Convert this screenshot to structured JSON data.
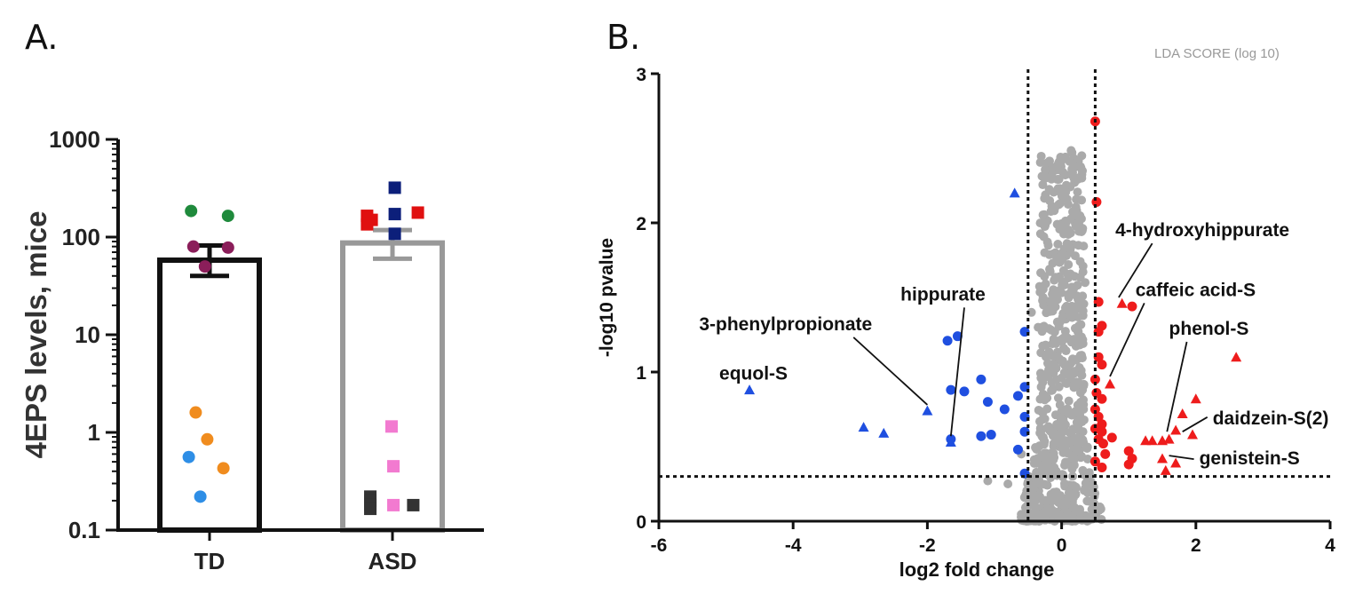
{
  "panels": {
    "a_label": "A.",
    "b_label": "B."
  },
  "chart_data": [
    {
      "type": "bar",
      "panel": "A.",
      "ylabel": "4EPS levels, mice",
      "yscale": "log",
      "ylim": [
        0.1,
        1000
      ],
      "yticks": [
        {
          "value": 0.1,
          "label": "0.1"
        },
        {
          "value": 1,
          "label": "1"
        },
        {
          "value": 10,
          "label": "10"
        },
        {
          "value": 100,
          "label": "100"
        },
        {
          "value": 1000,
          "label": "1000"
        }
      ],
      "categories": [
        "TD",
        "ASD"
      ],
      "bars": [
        {
          "category": "TD",
          "mean": 58,
          "err_low": 40,
          "err_high": 82,
          "edge_color": "#111111"
        },
        {
          "category": "ASD",
          "mean": 87,
          "err_low": 60,
          "err_high": 118,
          "edge_color": "#999999"
        }
      ],
      "points": [
        {
          "category": "TD",
          "y": 185,
          "dx": -0.4,
          "color": "#1f8a3c",
          "shape": "circle"
        },
        {
          "category": "TD",
          "y": 165,
          "dx": 0.4,
          "color": "#1f8a3c",
          "shape": "circle"
        },
        {
          "category": "TD",
          "y": 80,
          "dx": -0.35,
          "color": "#8b1e5a",
          "shape": "circle"
        },
        {
          "category": "TD",
          "y": 78,
          "dx": 0.4,
          "color": "#8b1e5a",
          "shape": "circle"
        },
        {
          "category": "TD",
          "y": 50,
          "dx": -0.1,
          "color": "#8b1e5a",
          "shape": "circle"
        },
        {
          "category": "TD",
          "y": 1.6,
          "dx": -0.3,
          "color": "#f08c1e",
          "shape": "circle"
        },
        {
          "category": "TD",
          "y": 0.85,
          "dx": -0.05,
          "color": "#f08c1e",
          "shape": "circle"
        },
        {
          "category": "TD",
          "y": 0.43,
          "dx": 0.3,
          "color": "#f08c1e",
          "shape": "circle"
        },
        {
          "category": "TD",
          "y": 0.56,
          "dx": -0.45,
          "color": "#2e8ee6",
          "shape": "circle"
        },
        {
          "category": "TD",
          "y": 0.22,
          "dx": -0.2,
          "color": "#2e8ee6",
          "shape": "circle"
        },
        {
          "category": "ASD",
          "y": 320,
          "dx": 0.05,
          "color": "#0c1f7a",
          "shape": "square"
        },
        {
          "category": "ASD",
          "y": 165,
          "dx": -0.55,
          "color": "#e01010",
          "shape": "square"
        },
        {
          "category": "ASD",
          "y": 150,
          "dx": -0.45,
          "color": "#e01010",
          "shape": "square"
        },
        {
          "category": "ASD",
          "y": 135,
          "dx": -0.55,
          "color": "#e01010",
          "shape": "square"
        },
        {
          "category": "ASD",
          "y": 178,
          "dx": 0.55,
          "color": "#e01010",
          "shape": "square"
        },
        {
          "category": "ASD",
          "y": 172,
          "dx": 0.05,
          "color": "#0c1f7a",
          "shape": "square"
        },
        {
          "category": "ASD",
          "y": 108,
          "dx": 0.05,
          "color": "#0c1f7a",
          "shape": "square"
        },
        {
          "category": "ASD",
          "y": 1.15,
          "dx": -0.02,
          "color": "#f27ad0",
          "shape": "square"
        },
        {
          "category": "ASD",
          "y": 0.45,
          "dx": 0.02,
          "color": "#f27ad0",
          "shape": "square"
        },
        {
          "category": "ASD",
          "y": 0.18,
          "dx": 0.02,
          "color": "#f27ad0",
          "shape": "square"
        },
        {
          "category": "ASD",
          "y": 0.22,
          "dx": -0.48,
          "color": "#333333",
          "shape": "square"
        },
        {
          "category": "ASD",
          "y": 0.2,
          "dx": -0.48,
          "color": "#333333",
          "shape": "square"
        },
        {
          "category": "ASD",
          "y": 0.18,
          "dx": -0.48,
          "color": "#333333",
          "shape": "square"
        },
        {
          "category": "ASD",
          "y": 0.165,
          "dx": -0.48,
          "color": "#333333",
          "shape": "square"
        },
        {
          "category": "ASD",
          "y": 0.18,
          "dx": 0.45,
          "color": "#333333",
          "shape": "square"
        }
      ]
    },
    {
      "type": "scatter",
      "panel": "B.",
      "header_text": "LDA SCORE (log 10)",
      "xlabel": "log2 fold change",
      "ylabel": "-log10 pvalue",
      "xlim": [
        -6,
        4
      ],
      "ylim": [
        0,
        3
      ],
      "xticks": [
        {
          "value": -6,
          "label": "-6"
        },
        {
          "value": -4,
          "label": "-4"
        },
        {
          "value": -2,
          "label": "-2"
        },
        {
          "value": 0,
          "label": "0"
        },
        {
          "value": 2,
          "label": "2"
        },
        {
          "value": 4,
          "label": "4"
        }
      ],
      "yticks": [
        {
          "value": 0,
          "label": "0"
        },
        {
          "value": 1,
          "label": "1"
        },
        {
          "value": 2,
          "label": "2"
        },
        {
          "value": 3,
          "label": "3"
        }
      ],
      "thresholds": {
        "vertical": [
          -0.5,
          0.5
        ],
        "horizontal": 0.3
      },
      "colors": {
        "up": "#ee1c1c",
        "down": "#1f4fe0",
        "ns": "#aaaaaa"
      },
      "blue_points": [
        {
          "x": -1.55,
          "y": 1.24,
          "shape": "circle"
        },
        {
          "x": -1.7,
          "y": 1.21,
          "shape": "circle"
        },
        {
          "x": -1.2,
          "y": 0.95,
          "shape": "circle"
        },
        {
          "x": -1.45,
          "y": 0.87,
          "shape": "circle"
        },
        {
          "x": -1.65,
          "y": 0.88,
          "shape": "circle"
        },
        {
          "x": -1.1,
          "y": 0.8,
          "shape": "circle"
        },
        {
          "x": -0.55,
          "y": 0.9,
          "shape": "circle"
        },
        {
          "x": -0.65,
          "y": 0.84,
          "shape": "circle"
        },
        {
          "x": -0.85,
          "y": 0.75,
          "shape": "circle"
        },
        {
          "x": -0.55,
          "y": 0.7,
          "shape": "circle"
        },
        {
          "x": -1.05,
          "y": 0.58,
          "shape": "circle"
        },
        {
          "x": -1.2,
          "y": 0.57,
          "shape": "circle"
        },
        {
          "x": -0.65,
          "y": 0.48,
          "shape": "circle"
        },
        {
          "x": -1.65,
          "y": 0.55,
          "shape": "circle"
        },
        {
          "x": -0.55,
          "y": 0.32,
          "shape": "circle"
        },
        {
          "x": -0.55,
          "y": 1.27,
          "shape": "circle"
        },
        {
          "x": -0.55,
          "y": 0.6,
          "shape": "circle"
        },
        {
          "x": -4.65,
          "y": 0.88,
          "shape": "triangle"
        },
        {
          "x": -2.95,
          "y": 0.63,
          "shape": "triangle"
        },
        {
          "x": -2.65,
          "y": 0.59,
          "shape": "triangle"
        },
        {
          "x": -2.0,
          "y": 0.74,
          "shape": "triangle"
        },
        {
          "x": -1.65,
          "y": 0.53,
          "shape": "triangle"
        },
        {
          "x": -0.7,
          "y": 2.2,
          "shape": "triangle"
        }
      ],
      "red_points": [
        {
          "x": 0.5,
          "y": 2.68,
          "shape": "circle"
        },
        {
          "x": 0.52,
          "y": 2.14,
          "shape": "circle"
        },
        {
          "x": 0.55,
          "y": 1.47,
          "shape": "circle"
        },
        {
          "x": 0.6,
          "y": 1.31,
          "shape": "circle"
        },
        {
          "x": 0.55,
          "y": 1.27,
          "shape": "circle"
        },
        {
          "x": 0.55,
          "y": 1.1,
          "shape": "circle"
        },
        {
          "x": 0.6,
          "y": 1.05,
          "shape": "circle"
        },
        {
          "x": 0.5,
          "y": 0.95,
          "shape": "circle"
        },
        {
          "x": 0.52,
          "y": 0.86,
          "shape": "circle"
        },
        {
          "x": 0.6,
          "y": 0.82,
          "shape": "circle"
        },
        {
          "x": 0.5,
          "y": 0.75,
          "shape": "circle"
        },
        {
          "x": 0.55,
          "y": 0.7,
          "shape": "circle"
        },
        {
          "x": 0.6,
          "y": 0.65,
          "shape": "circle"
        },
        {
          "x": 0.5,
          "y": 0.62,
          "shape": "circle"
        },
        {
          "x": 0.6,
          "y": 0.6,
          "shape": "circle"
        },
        {
          "x": 0.55,
          "y": 0.55,
          "shape": "circle"
        },
        {
          "x": 0.62,
          "y": 0.52,
          "shape": "circle"
        },
        {
          "x": 0.75,
          "y": 0.56,
          "shape": "circle"
        },
        {
          "x": 0.65,
          "y": 0.45,
          "shape": "circle"
        },
        {
          "x": 0.5,
          "y": 0.4,
          "shape": "circle"
        },
        {
          "x": 0.6,
          "y": 0.36,
          "shape": "circle"
        },
        {
          "x": 1.0,
          "y": 0.47,
          "shape": "circle"
        },
        {
          "x": 1.05,
          "y": 0.42,
          "shape": "circle"
        },
        {
          "x": 1.0,
          "y": 0.38,
          "shape": "circle"
        },
        {
          "x": 1.05,
          "y": 1.44,
          "shape": "circle"
        },
        {
          "x": 0.9,
          "y": 1.46,
          "shape": "triangle"
        },
        {
          "x": 0.72,
          "y": 0.92,
          "shape": "triangle"
        },
        {
          "x": 2.6,
          "y": 1.1,
          "shape": "triangle"
        },
        {
          "x": 2.0,
          "y": 0.82,
          "shape": "triangle"
        },
        {
          "x": 1.8,
          "y": 0.72,
          "shape": "triangle"
        },
        {
          "x": 1.7,
          "y": 0.61,
          "shape": "triangle"
        },
        {
          "x": 1.95,
          "y": 0.58,
          "shape": "triangle"
        },
        {
          "x": 1.25,
          "y": 0.54,
          "shape": "triangle"
        },
        {
          "x": 1.35,
          "y": 0.54,
          "shape": "triangle"
        },
        {
          "x": 1.5,
          "y": 0.54,
          "shape": "triangle"
        },
        {
          "x": 1.6,
          "y": 0.55,
          "shape": "triangle"
        },
        {
          "x": 1.5,
          "y": 0.42,
          "shape": "triangle"
        },
        {
          "x": 1.7,
          "y": 0.39,
          "shape": "triangle"
        },
        {
          "x": 1.55,
          "y": 0.34,
          "shape": "triangle"
        }
      ],
      "gray_points": [],
      "annotations": [
        {
          "text": "4-hydroxyhippurate",
          "text_x": 0.8,
          "text_y": 1.91,
          "arrow_to": [
            0.85,
            1.5
          ]
        },
        {
          "text": "caffeic acid-S",
          "text_x": 1.1,
          "text_y": 1.51,
          "arrow_to": [
            0.72,
            0.97
          ]
        },
        {
          "text": "phenol-S",
          "text_x": 1.6,
          "text_y": 1.25,
          "arrow_to": [
            1.57,
            0.6
          ]
        },
        {
          "text": "daidzein-S(2)",
          "text_x": 2.25,
          "text_y": 0.65,
          "arrow_to": [
            1.8,
            0.6
          ]
        },
        {
          "text": "genistein-S",
          "text_x": 2.05,
          "text_y": 0.38,
          "arrow_to": [
            1.6,
            0.44
          ]
        },
        {
          "text": "hippurate",
          "text_x": -2.4,
          "text_y": 1.48,
          "arrow_to": [
            -1.65,
            0.57
          ]
        },
        {
          "text": "3-phenylpropionate",
          "text_x": -5.4,
          "text_y": 1.28,
          "arrow_to": [
            -2.0,
            0.78
          ]
        },
        {
          "text": "equol-S",
          "text_x": -5.1,
          "text_y": 0.95,
          "arrow_to": null
        }
      ]
    }
  ]
}
